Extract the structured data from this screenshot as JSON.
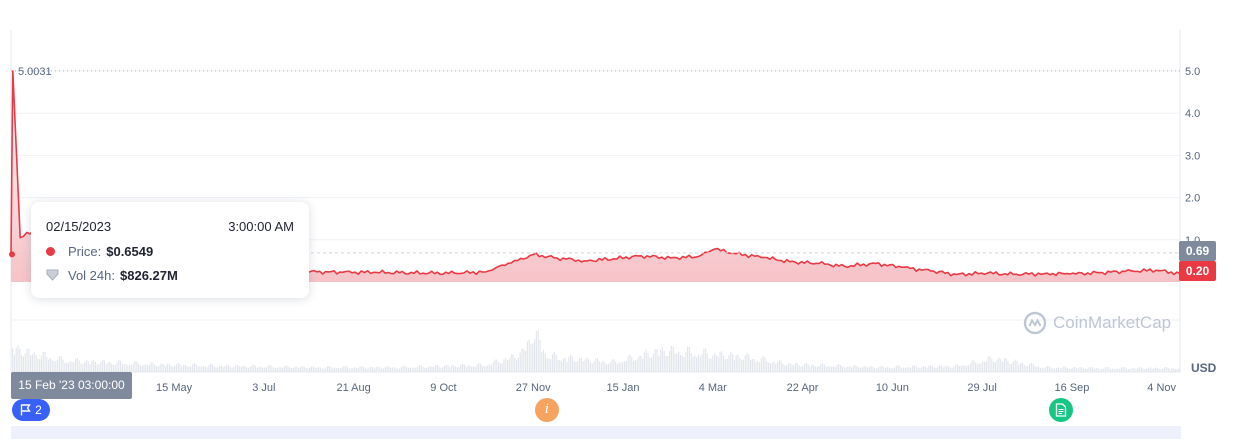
{
  "chart_data": {
    "type": "area",
    "title": "",
    "xlabel": "",
    "ylabel": "USD",
    "ylim": [
      0,
      5.6
    ],
    "grid": true,
    "y_ticks": [
      "1.0",
      "2.0",
      "3.0",
      "4.0",
      "5.0"
    ],
    "y_tick_values": [
      1,
      2,
      3,
      4,
      5
    ],
    "x_ticks": [
      "15 May",
      "3 Jul",
      "21 Aug",
      "9 Oct",
      "27 Nov",
      "15 Jan",
      "4 Mar",
      "22 Apr",
      "10 Jun",
      "29 Jul",
      "16 Sep",
      "4 Nov"
    ],
    "x_tick_dates": [
      "2023-05-15",
      "2023-07-03",
      "2023-08-21",
      "2023-10-09",
      "2023-11-27",
      "2024-01-15",
      "2024-03-04",
      "2024-04-22",
      "2024-06-10",
      "2024-07-29",
      "2024-09-16",
      "2024-11-04"
    ],
    "x_range": [
      "2023-02-15",
      "2024-11-14"
    ],
    "max_label": "5.0031",
    "series": [
      {
        "color": "#ea3943",
        "x": [
          "2023-02-15",
          "2023-02-16",
          "2023-02-20",
          "2023-03-01",
          "2023-03-15",
          "2023-04-01",
          "2023-04-15",
          "2023-05-01",
          "2023-05-15",
          "2023-06-01",
          "2023-06-15",
          "2023-07-01",
          "2023-07-15",
          "2023-08-01",
          "2023-08-15",
          "2023-09-01",
          "2023-09-15",
          "2023-10-01",
          "2023-10-15",
          "2023-11-01",
          "2023-11-10",
          "2023-11-15",
          "2023-11-27",
          "2023-12-10",
          "2023-12-25",
          "2024-01-10",
          "2024-01-25",
          "2024-02-10",
          "2024-02-25",
          "2024-03-05",
          "2024-03-15",
          "2024-04-01",
          "2024-04-15",
          "2024-05-01",
          "2024-05-15",
          "2024-06-01",
          "2024-06-15",
          "2024-07-01",
          "2024-07-15",
          "2024-08-01",
          "2024-08-15",
          "2024-09-01",
          "2024-09-15",
          "2024-10-01",
          "2024-10-15",
          "2024-11-01",
          "2024-11-14"
        ],
        "values": [
          0.6549,
          5.0031,
          1.05,
          1.25,
          0.85,
          0.4,
          0.36,
          0.33,
          0.31,
          0.3,
          0.29,
          0.28,
          0.26,
          0.24,
          0.23,
          0.23,
          0.22,
          0.21,
          0.21,
          0.24,
          0.4,
          0.45,
          0.65,
          0.57,
          0.5,
          0.55,
          0.62,
          0.57,
          0.6,
          0.78,
          0.68,
          0.58,
          0.48,
          0.44,
          0.37,
          0.44,
          0.35,
          0.26,
          0.18,
          0.21,
          0.18,
          0.2,
          0.19,
          0.22,
          0.25,
          0.28,
          0.2
        ]
      }
    ],
    "volume": {
      "color": "#e3e6ec",
      "x": [
        "2023-02-15",
        "2023-03-01",
        "2023-03-15",
        "2023-05-01",
        "2023-06-15",
        "2023-08-01",
        "2023-09-15",
        "2023-11-01",
        "2023-11-20",
        "2023-11-27",
        "2023-12-05",
        "2024-01-10",
        "2024-02-05",
        "2024-03-05",
        "2024-03-20",
        "2024-04-15",
        "2024-06-01",
        "2024-07-15",
        "2024-08-05",
        "2024-09-01",
        "2024-10-01",
        "2024-11-14"
      ],
      "values": [
        0.6,
        0.45,
        0.3,
        0.2,
        0.15,
        0.12,
        0.12,
        0.18,
        0.45,
        1.0,
        0.4,
        0.25,
        0.55,
        0.45,
        0.4,
        0.2,
        0.12,
        0.15,
        0.35,
        0.12,
        0.1,
        0.1
      ]
    }
  },
  "tooltip": {
    "date": "02/15/2023",
    "time": "3:00:00 AM",
    "price_label": "Price:",
    "price_value": "$0.6549",
    "vol_label": "Vol 24h:",
    "vol_value": "$826.27M"
  },
  "cursor": {
    "date_label": "15 Feb '23 03:00:00",
    "price_tag": "0.69",
    "current_price_tag": "0.20"
  },
  "events": {
    "flag_count": "2",
    "info_glyph": "i"
  },
  "watermark": "CoinMarketCap",
  "currency_label": "USD",
  "colors": {
    "price_line": "#ea3943",
    "area_fill": "#fbd5d8",
    "gray_tag": "#808a9d",
    "flag": "#3861fb",
    "info": "#f5a35f",
    "doc": "#16c784"
  }
}
